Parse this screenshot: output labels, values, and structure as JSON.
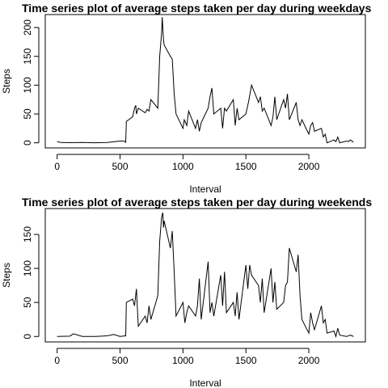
{
  "chart_data": [
    {
      "type": "line",
      "title": "Time series plot of average steps taken per day during weekdays",
      "x_label": "Interval",
      "y_label": "Steps",
      "series": [
        {
          "name": "weekday",
          "color": "#000000",
          "x": [
            0,
            30,
            100,
            200,
            300,
            400,
            500,
            530,
            545,
            550,
            600,
            615,
            625,
            630,
            645,
            700,
            715,
            730,
            745,
            800,
            815,
            830,
            835,
            845,
            850,
            900,
            915,
            930,
            945,
            1000,
            1010,
            1030,
            1045,
            1100,
            1115,
            1130,
            1145,
            1200,
            1215,
            1230,
            1245,
            1300,
            1315,
            1330,
            1345,
            1400,
            1415,
            1430,
            1445,
            1500,
            1520,
            1545,
            1600,
            1615,
            1630,
            1645,
            1700,
            1715,
            1730,
            1745,
            1800,
            1815,
            1830,
            1845,
            1900,
            1915,
            1930,
            1945,
            2000,
            2015,
            2030,
            2045,
            2100,
            2115,
            2130,
            2145,
            2200,
            2215,
            2230,
            2245,
            2300,
            2315,
            2330,
            2355
          ],
          "values": [
            2,
            0.5,
            0.3,
            0.5,
            0,
            0.5,
            3,
            3,
            1,
            37,
            45,
            60,
            65,
            50,
            60,
            52,
            58,
            55,
            75,
            60,
            150,
            190,
            218,
            180,
            170,
            150,
            145,
            85,
            50,
            25,
            40,
            30,
            55,
            25,
            40,
            20,
            35,
            60,
            80,
            95,
            50,
            60,
            25,
            60,
            55,
            75,
            30,
            60,
            40,
            50,
            70,
            100,
            70,
            80,
            55,
            60,
            30,
            45,
            80,
            40,
            75,
            60,
            85,
            40,
            70,
            40,
            30,
            40,
            15,
            30,
            35,
            20,
            25,
            10,
            15,
            0,
            5,
            2,
            10,
            0,
            3,
            2,
            5,
            1
          ]
        }
      ],
      "xlim": [
        -94.2,
        2449.2
      ],
      "xticks": [
        0,
        500,
        1000,
        1500,
        2000
      ],
      "ylim": [
        -8.9,
        222.5
      ],
      "yticks": [
        0,
        50,
        100,
        150,
        200
      ]
    },
    {
      "type": "line",
      "title": "Time series plot of average steps taken per day during weekends",
      "x_label": "Interval",
      "y_label": "Steps",
      "series": [
        {
          "name": "weekend",
          "color": "#000000",
          "x": [
            0,
            100,
            130,
            200,
            300,
            400,
            450,
            500,
            545,
            550,
            600,
            615,
            630,
            645,
            700,
            715,
            730,
            745,
            800,
            815,
            830,
            840,
            845,
            850,
            900,
            915,
            930,
            945,
            1000,
            1015,
            1030,
            1045,
            1100,
            1115,
            1130,
            1145,
            1200,
            1215,
            1230,
            1245,
            1300,
            1315,
            1330,
            1345,
            1400,
            1415,
            1430,
            1445,
            1500,
            1515,
            1530,
            1545,
            1600,
            1615,
            1630,
            1645,
            1700,
            1715,
            1730,
            1745,
            1800,
            1815,
            1830,
            1845,
            1900,
            1915,
            1930,
            1945,
            2000,
            2015,
            2030,
            2045,
            2100,
            2115,
            2130,
            2145,
            2200,
            2215,
            2230,
            2245,
            2300,
            2315,
            2330,
            2355
          ],
          "values": [
            0,
            0.5,
            4,
            0,
            0,
            1,
            3,
            0,
            1,
            50,
            55,
            45,
            70,
            15,
            30,
            20,
            45,
            25,
            60,
            140,
            175,
            182,
            160,
            170,
            130,
            155,
            95,
            30,
            50,
            20,
            35,
            45,
            30,
            45,
            85,
            25,
            110,
            35,
            50,
            30,
            90,
            45,
            95,
            35,
            50,
            30,
            65,
            25,
            105,
            70,
            105,
            90,
            75,
            50,
            85,
            35,
            100,
            50,
            80,
            40,
            50,
            75,
            80,
            130,
            95,
            120,
            60,
            25,
            5,
            35,
            20,
            10,
            45,
            20,
            25,
            5,
            8,
            0,
            12,
            2,
            0,
            1,
            2,
            0
          ]
        }
      ],
      "xlim": [
        -94.2,
        2449.2
      ],
      "xticks": [
        0,
        500,
        1000,
        1500,
        2000
      ],
      "ylim": [
        -8,
        188
      ],
      "yticks": [
        0,
        50,
        100,
        150
      ]
    }
  ]
}
